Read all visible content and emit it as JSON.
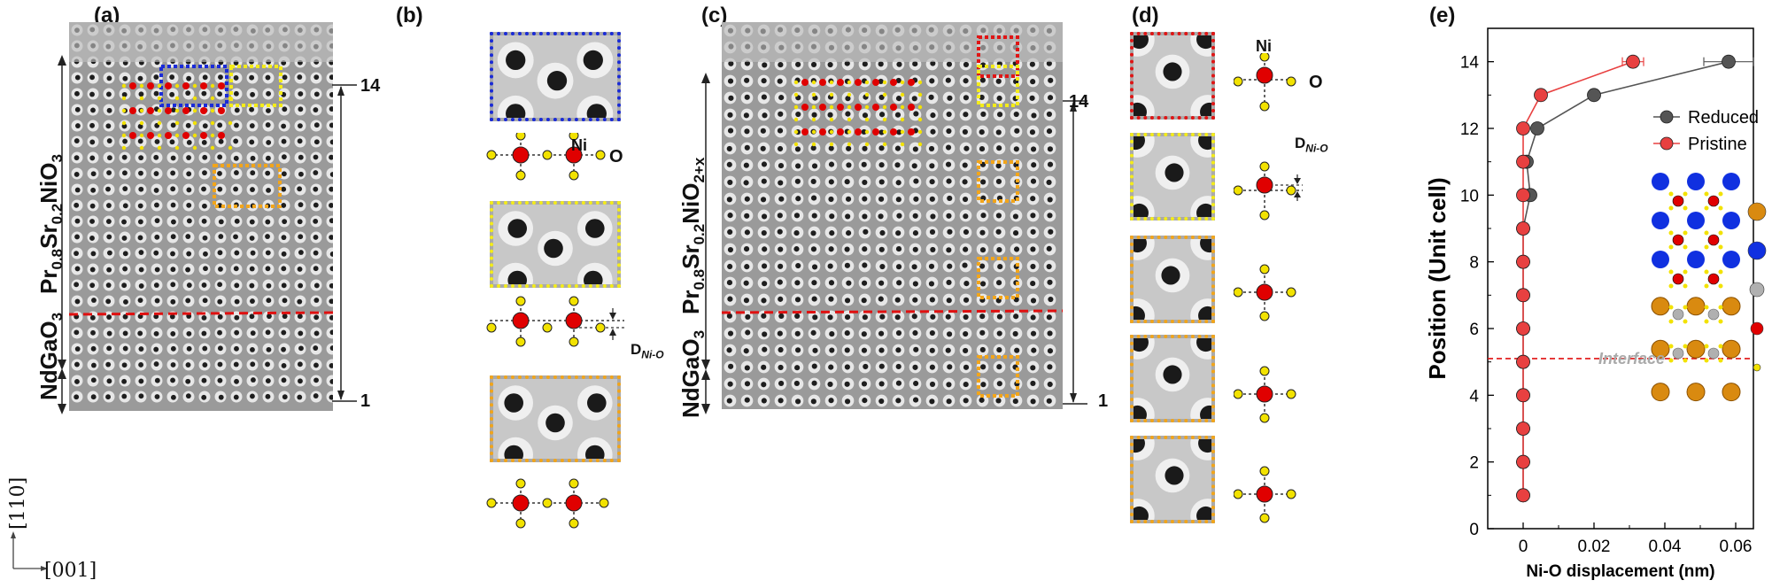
{
  "panels": {
    "a": {
      "label": "(a)",
      "film": "Pr0.8Sr0.2NiO3",
      "film_parts": [
        "Pr",
        "0.8",
        "Sr",
        "0.2",
        "NiO",
        "3"
      ],
      "substrate": "NdGaO3",
      "substrate_parts": [
        "NdGaO",
        "3"
      ]
    },
    "b": {
      "label": "(b)",
      "ni_label": "Ni",
      "o_label": "O",
      "d_label": "D",
      "d_sub": "Ni-O"
    },
    "c": {
      "label": "(c)",
      "film_parts": [
        "Pr",
        "0.8",
        "Sr",
        "0.2",
        "NiO",
        "2+x"
      ],
      "substrate_parts": [
        "NdGaO",
        "3"
      ],
      "scale_top": "14",
      "scale_bottom": "1"
    },
    "d": {
      "label": "(d)",
      "ni_label": "Ni",
      "o_label": "O",
      "d_label": "D",
      "d_sub": "Ni-O"
    },
    "e": {
      "label": "(e)"
    },
    "a_scale_top": "14",
    "a_scale_bottom": "1"
  },
  "axes_directions": {
    "vertical": "[110]",
    "horizontal": "[001]"
  },
  "colors": {
    "ni": "#e00000",
    "o": "#f2e200",
    "pr": "#1030e0",
    "nd": "#d98a10",
    "ga": "#b0b0b0",
    "reduced": "#555555",
    "pristine": "#e84040",
    "interface": "#e01010",
    "blue_box": "#1a2bd8",
    "yellow_box": "#f4ec1a",
    "orange_box": "#f2a51a",
    "red_box": "#e01515"
  },
  "chart_data": {
    "type": "scatter",
    "xlabel": "Ni-O displacement (nm)",
    "ylabel": "Position (Unit cell)",
    "xlim": [
      -0.01,
      0.065
    ],
    "ylim": [
      0,
      15
    ],
    "xticks": [
      "0",
      "0.02",
      "0.04",
      "0.06"
    ],
    "yticks": [
      "0",
      "2",
      "4",
      "6",
      "8",
      "10",
      "12",
      "14"
    ],
    "series": [
      {
        "name": "Reduced",
        "color": "#555555",
        "x": [
          0,
          0,
          0,
          0,
          0,
          0,
          0,
          0,
          0,
          0.002,
          0.001,
          0.004,
          0.02,
          0.058
        ],
        "y": [
          1,
          2,
          3,
          4,
          5,
          6,
          7,
          8,
          9,
          10,
          11,
          12,
          13,
          14
        ],
        "xerr_last": 0.007
      },
      {
        "name": "Pristine",
        "color": "#e84040",
        "x": [
          0,
          0,
          0,
          0,
          0,
          0,
          0,
          0,
          0,
          0,
          0,
          0,
          0.005,
          0.031
        ],
        "y": [
          1,
          2,
          3,
          4,
          5,
          6,
          7,
          8,
          9,
          10,
          11,
          12,
          13,
          14
        ],
        "xerr_last": 0.003
      }
    ],
    "legend": {
      "position": "top-right",
      "entries": [
        "Reduced",
        "Pristine"
      ]
    },
    "annotation": "Interface",
    "interface_y": 5.1,
    "structure_legend": [
      "Nd",
      "Pr",
      "Ga",
      "Ni",
      "O"
    ]
  }
}
